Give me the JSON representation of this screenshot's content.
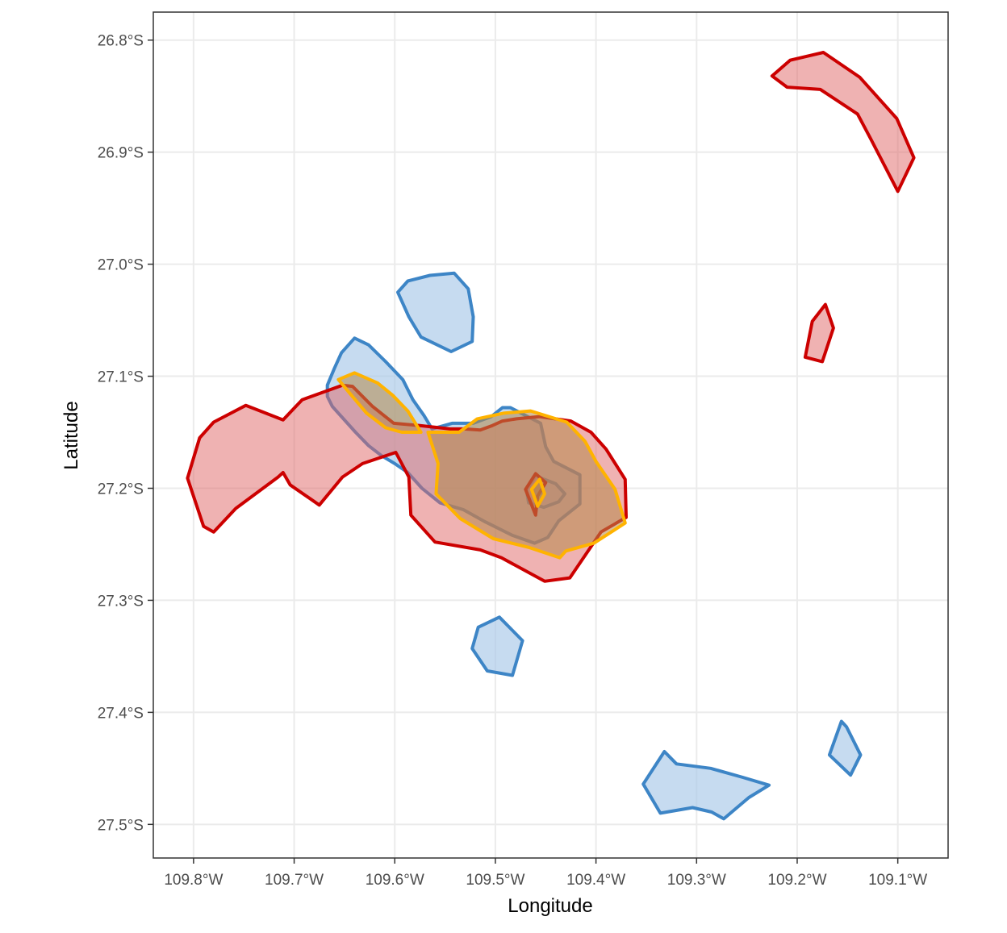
{
  "chart_data": {
    "type": "map",
    "xlabel": "Longitude",
    "ylabel": "Latitude",
    "xlim": [
      -109.84,
      -109.05
    ],
    "ylim": [
      -27.53,
      -26.775
    ],
    "x_ticks": [
      {
        "value": -109.8,
        "label": "109.8°W"
      },
      {
        "value": -109.7,
        "label": "109.7°W"
      },
      {
        "value": -109.6,
        "label": "109.6°W"
      },
      {
        "value": -109.5,
        "label": "109.5°W"
      },
      {
        "value": -109.4,
        "label": "109.4°W"
      },
      {
        "value": -109.3,
        "label": "109.3°W"
      },
      {
        "value": -109.2,
        "label": "109.2°W"
      },
      {
        "value": -109.1,
        "label": "109.1°W"
      }
    ],
    "y_ticks": [
      {
        "value": -26.8,
        "label": "26.8°S"
      },
      {
        "value": -26.9,
        "label": "26.9°S"
      },
      {
        "value": -27.0,
        "label": "27.0°S"
      },
      {
        "value": -27.1,
        "label": "27.1°S"
      },
      {
        "value": -27.2,
        "label": "27.2°S"
      },
      {
        "value": -27.3,
        "label": "27.3°S"
      },
      {
        "value": -27.4,
        "label": "27.4°S"
      },
      {
        "value": -27.5,
        "label": "27.5°S"
      }
    ],
    "grid": true,
    "styles": {
      "blue": {
        "fill": "#a8c8e8",
        "fill_opacity": 0.65,
        "stroke": "#3d85c6"
      },
      "red": {
        "fill": "#e06666",
        "fill_opacity": 0.5,
        "stroke": "#cc0000"
      },
      "yellow": {
        "fill": "#b5894a",
        "fill_opacity": 0.55,
        "stroke": "#ffb300"
      }
    },
    "polygons": [
      {
        "style": "blue",
        "coords": [
          [
            -109.64,
            -27.066
          ],
          [
            -109.626,
            -27.072
          ],
          [
            -109.609,
            -27.087
          ],
          [
            -109.592,
            -27.103
          ],
          [
            -109.582,
            -27.121
          ],
          [
            -109.571,
            -27.135
          ],
          [
            -109.563,
            -27.147
          ],
          [
            -109.543,
            -27.142
          ],
          [
            -109.522,
            -27.142
          ],
          [
            -109.504,
            -27.136
          ],
          [
            -109.493,
            -27.128
          ],
          [
            -109.485,
            -27.128
          ],
          [
            -109.455,
            -27.142
          ],
          [
            -109.45,
            -27.163
          ],
          [
            -109.442,
            -27.176
          ],
          [
            -109.416,
            -27.188
          ],
          [
            -109.416,
            -27.214
          ],
          [
            -109.437,
            -27.229
          ],
          [
            -109.448,
            -27.244
          ],
          [
            -109.461,
            -27.249
          ],
          [
            -109.483,
            -27.242
          ],
          [
            -109.51,
            -27.23
          ],
          [
            -109.532,
            -27.219
          ],
          [
            -109.555,
            -27.213
          ],
          [
            -109.573,
            -27.2
          ],
          [
            -109.587,
            -27.186
          ],
          [
            -109.6,
            -27.178
          ],
          [
            -109.613,
            -27.171
          ],
          [
            -109.626,
            -27.162
          ],
          [
            -109.639,
            -27.15
          ],
          [
            -109.652,
            -27.137
          ],
          [
            -109.662,
            -27.127
          ],
          [
            -109.667,
            -27.118
          ],
          [
            -109.667,
            -27.108
          ],
          [
            -109.66,
            -27.093
          ],
          [
            -109.653,
            -27.079
          ]
        ]
      },
      {
        "style": "blue",
        "coords": [
          [
            -109.565,
            -27.01
          ],
          [
            -109.541,
            -27.008
          ],
          [
            -109.527,
            -27.022
          ],
          [
            -109.522,
            -27.047
          ],
          [
            -109.523,
            -27.069
          ],
          [
            -109.544,
            -27.078
          ],
          [
            -109.574,
            -27.065
          ],
          [
            -109.586,
            -27.047
          ],
          [
            -109.597,
            -27.025
          ],
          [
            -109.587,
            -27.015
          ]
        ]
      },
      {
        "style": "blue",
        "coords": [
          [
            -109.46,
            -27.189
          ],
          [
            -109.44,
            -27.196
          ],
          [
            -109.431,
            -27.205
          ],
          [
            -109.437,
            -27.212
          ],
          [
            -109.452,
            -27.217
          ],
          [
            -109.467,
            -27.213
          ],
          [
            -109.469,
            -27.202
          ]
        ]
      },
      {
        "style": "blue",
        "coords": [
          [
            -109.517,
            -27.324
          ],
          [
            -109.496,
            -27.315
          ],
          [
            -109.473,
            -27.336
          ],
          [
            -109.483,
            -27.367
          ],
          [
            -109.508,
            -27.363
          ],
          [
            -109.523,
            -27.343
          ]
        ]
      },
      {
        "style": "blue",
        "coords": [
          [
            -109.332,
            -27.435
          ],
          [
            -109.32,
            -27.446
          ],
          [
            -109.286,
            -27.45
          ],
          [
            -109.254,
            -27.458
          ],
          [
            -109.228,
            -27.465
          ],
          [
            -109.248,
            -27.476
          ],
          [
            -109.273,
            -27.495
          ],
          [
            -109.285,
            -27.489
          ],
          [
            -109.304,
            -27.485
          ],
          [
            -109.336,
            -27.49
          ],
          [
            -109.353,
            -27.464
          ]
        ]
      },
      {
        "style": "blue",
        "coords": [
          [
            -109.156,
            -27.408
          ],
          [
            -109.151,
            -27.413
          ],
          [
            -109.137,
            -27.438
          ],
          [
            -109.147,
            -27.456
          ],
          [
            -109.168,
            -27.438
          ]
        ]
      },
      {
        "style": "red",
        "coords": [
          [
            -109.652,
            -27.108
          ],
          [
            -109.692,
            -27.121
          ],
          [
            -109.711,
            -27.139
          ],
          [
            -109.748,
            -27.126
          ],
          [
            -109.78,
            -27.141
          ],
          [
            -109.794,
            -27.155
          ],
          [
            -109.806,
            -27.191
          ],
          [
            -109.79,
            -27.234
          ],
          [
            -109.78,
            -27.239
          ],
          [
            -109.758,
            -27.218
          ],
          [
            -109.746,
            -27.21
          ],
          [
            -109.716,
            -27.19
          ],
          [
            -109.711,
            -27.186
          ],
          [
            -109.704,
            -27.197
          ],
          [
            -109.675,
            -27.215
          ],
          [
            -109.652,
            -27.19
          ],
          [
            -109.632,
            -27.178
          ],
          [
            -109.599,
            -27.168
          ],
          [
            -109.586,
            -27.19
          ],
          [
            -109.584,
            -27.224
          ],
          [
            -109.56,
            -27.248
          ],
          [
            -109.515,
            -27.255
          ],
          [
            -109.494,
            -27.262
          ],
          [
            -109.451,
            -27.283
          ],
          [
            -109.426,
            -27.28
          ],
          [
            -109.395,
            -27.239
          ],
          [
            -109.37,
            -27.226
          ],
          [
            -109.371,
            -27.192
          ],
          [
            -109.39,
            -27.165
          ],
          [
            -109.405,
            -27.15
          ],
          [
            -109.425,
            -27.14
          ],
          [
            -109.456,
            -27.136
          ],
          [
            -109.479,
            -27.138
          ],
          [
            -109.493,
            -27.14
          ],
          [
            -109.503,
            -27.144
          ],
          [
            -109.515,
            -27.148
          ],
          [
            -109.531,
            -27.147
          ],
          [
            -109.545,
            -27.147
          ],
          [
            -109.575,
            -27.144
          ],
          [
            -109.601,
            -27.142
          ],
          [
            -109.622,
            -27.127
          ],
          [
            -109.642,
            -27.109
          ]
        ]
      },
      {
        "style": "red",
        "coords": [
          [
            -109.225,
            -26.832
          ],
          [
            -109.207,
            -26.818
          ],
          [
            -109.174,
            -26.811
          ],
          [
            -109.138,
            -26.833
          ],
          [
            -109.101,
            -26.87
          ],
          [
            -109.084,
            -26.905
          ],
          [
            -109.1,
            -26.935
          ],
          [
            -109.127,
            -26.888
          ],
          [
            -109.14,
            -26.866
          ],
          [
            -109.177,
            -26.844
          ],
          [
            -109.21,
            -26.842
          ]
        ]
      },
      {
        "style": "red",
        "coords": [
          [
            -109.172,
            -27.036
          ],
          [
            -109.185,
            -27.051
          ],
          [
            -109.192,
            -27.083
          ],
          [
            -109.175,
            -27.087
          ],
          [
            -109.164,
            -27.057
          ]
        ]
      },
      {
        "style": "red",
        "coords": [
          [
            -109.46,
            -27.187
          ],
          [
            -109.45,
            -27.195
          ],
          [
            -109.458,
            -27.207
          ],
          [
            -109.46,
            -27.224
          ],
          [
            -109.47,
            -27.201
          ]
        ]
      },
      {
        "style": "yellow",
        "coords": [
          [
            -109.64,
            -27.097
          ],
          [
            -109.617,
            -27.106
          ],
          [
            -109.602,
            -27.117
          ],
          [
            -109.587,
            -27.131
          ],
          [
            -109.574,
            -27.15
          ],
          [
            -109.593,
            -27.15
          ],
          [
            -109.609,
            -27.146
          ],
          [
            -109.628,
            -27.133
          ],
          [
            -109.644,
            -27.116
          ],
          [
            -109.656,
            -27.103
          ]
        ]
      },
      {
        "style": "yellow",
        "coords": [
          [
            -109.567,
            -27.15
          ],
          [
            -109.557,
            -27.178
          ],
          [
            -109.559,
            -27.205
          ],
          [
            -109.535,
            -27.227
          ],
          [
            -109.502,
            -27.245
          ],
          [
            -109.466,
            -27.253
          ],
          [
            -109.436,
            -27.262
          ],
          [
            -109.43,
            -27.256
          ],
          [
            -109.402,
            -27.249
          ],
          [
            -109.371,
            -27.231
          ],
          [
            -109.381,
            -27.201
          ],
          [
            -109.4,
            -27.176
          ],
          [
            -109.411,
            -27.158
          ],
          [
            -109.429,
            -27.141
          ],
          [
            -109.465,
            -27.131
          ],
          [
            -109.492,
            -27.133
          ],
          [
            -109.518,
            -27.138
          ],
          [
            -109.536,
            -27.15
          ]
        ]
      },
      {
        "style": "yellow",
        "coords": [
          [
            -109.456,
            -27.192
          ],
          [
            -109.451,
            -27.205
          ],
          [
            -109.458,
            -27.216
          ],
          [
            -109.464,
            -27.201
          ]
        ]
      }
    ]
  }
}
